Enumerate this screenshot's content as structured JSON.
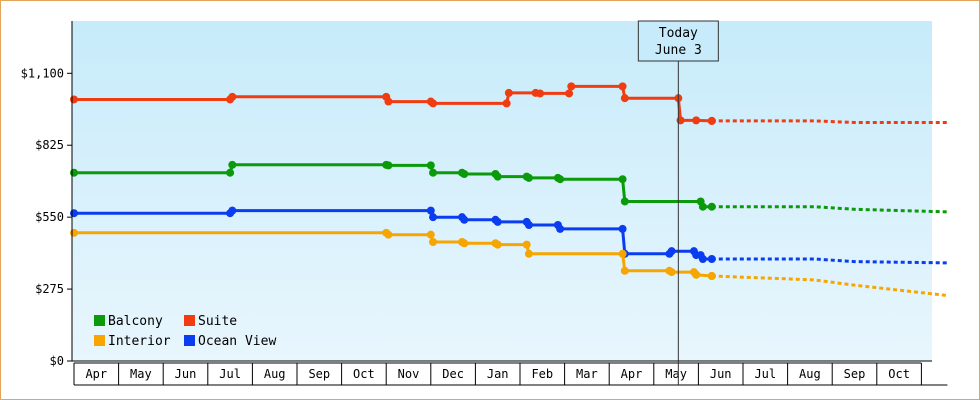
{
  "chart_data": {
    "type": "line",
    "title": "",
    "xlabel": "",
    "ylabel": "",
    "ylim": [
      0,
      1300
    ],
    "y_ticks": [
      {
        "value": 0,
        "label": "$0"
      },
      {
        "value": 275,
        "label": "$275"
      },
      {
        "value": 550,
        "label": "$550"
      },
      {
        "value": 825,
        "label": "$825"
      },
      {
        "value": 1100,
        "label": "$1,100"
      }
    ],
    "x_ticks": [
      "Apr",
      "May",
      "Jun",
      "Jul",
      "Aug",
      "Sep",
      "Oct",
      "Nov",
      "Dec",
      "Jan",
      "Feb",
      "Mar",
      "Apr",
      "May",
      "Jun",
      "Jul",
      "Aug",
      "Sep",
      "Oct"
    ],
    "today_marker": {
      "line1": "Today",
      "line2": "June 3",
      "month_index": 13.55
    },
    "legend": {
      "placement": "bottom-left",
      "items": [
        {
          "label": "Balcony",
          "color": "#0a9a0a"
        },
        {
          "label": "Suite",
          "color": "#f03c10"
        },
        {
          "label": "Interior",
          "color": "#f7a500"
        },
        {
          "label": "Ocean View",
          "color": "#0a3cf0"
        }
      ]
    },
    "series": [
      {
        "name": "Suite",
        "color": "#f03c10",
        "step": true,
        "points": [
          [
            0,
            1000
          ],
          [
            3.5,
            1000
          ],
          [
            3.55,
            1010
          ],
          [
            7,
            1010
          ],
          [
            7.05,
            992
          ],
          [
            8,
            992
          ],
          [
            8.05,
            985
          ],
          [
            9.7,
            985
          ],
          [
            9.75,
            1025
          ],
          [
            10.35,
            1025
          ],
          [
            10.45,
            1023
          ],
          [
            11.1,
            1023
          ],
          [
            11.15,
            1050
          ],
          [
            12.3,
            1050
          ],
          [
            12.35,
            1005
          ],
          [
            13.55,
            1005
          ],
          [
            13.6,
            920
          ],
          [
            13.95,
            920
          ],
          [
            14.3,
            918
          ]
        ],
        "forecast": [
          [
            14.3,
            918
          ],
          [
            16.6,
            918
          ],
          [
            17.5,
            912
          ],
          [
            19.6,
            912
          ]
        ]
      },
      {
        "name": "Balcony",
        "color": "#0a9a0a",
        "step": true,
        "points": [
          [
            0,
            720
          ],
          [
            3.5,
            720
          ],
          [
            3.55,
            750
          ],
          [
            7,
            750
          ],
          [
            7.05,
            748
          ],
          [
            8,
            748
          ],
          [
            8.05,
            720
          ],
          [
            8.7,
            720
          ],
          [
            8.75,
            715
          ],
          [
            9.45,
            715
          ],
          [
            9.5,
            705
          ],
          [
            10.15,
            705
          ],
          [
            10.2,
            700
          ],
          [
            10.85,
            700
          ],
          [
            10.9,
            695
          ],
          [
            12.3,
            695
          ],
          [
            12.35,
            610
          ],
          [
            14.05,
            610
          ],
          [
            14.1,
            590
          ],
          [
            14.3,
            590
          ]
        ],
        "forecast": [
          [
            14.3,
            590
          ],
          [
            16.6,
            590
          ],
          [
            17.5,
            580
          ],
          [
            19.6,
            570
          ]
        ]
      },
      {
        "name": "Ocean View",
        "color": "#0a3cf0",
        "step": true,
        "points": [
          [
            0,
            565
          ],
          [
            3.5,
            565
          ],
          [
            3.55,
            575
          ],
          [
            8,
            575
          ],
          [
            8.05,
            550
          ],
          [
            8.7,
            550
          ],
          [
            8.75,
            540
          ],
          [
            9.45,
            540
          ],
          [
            9.5,
            532
          ],
          [
            10.15,
            532
          ],
          [
            10.2,
            520
          ],
          [
            10.85,
            520
          ],
          [
            10.9,
            505
          ],
          [
            12.3,
            505
          ],
          [
            12.35,
            410
          ],
          [
            13.35,
            410
          ],
          [
            13.4,
            420
          ],
          [
            13.9,
            420
          ],
          [
            13.95,
            405
          ],
          [
            14.05,
            405
          ],
          [
            14.1,
            390
          ],
          [
            14.3,
            390
          ]
        ],
        "forecast": [
          [
            14.3,
            390
          ],
          [
            16.6,
            390
          ],
          [
            17.5,
            380
          ],
          [
            19.6,
            375
          ]
        ]
      },
      {
        "name": "Interior",
        "color": "#f7a500",
        "step": true,
        "points": [
          [
            0,
            490
          ],
          [
            7,
            490
          ],
          [
            7.05,
            483
          ],
          [
            8,
            483
          ],
          [
            8.05,
            455
          ],
          [
            8.7,
            455
          ],
          [
            8.75,
            450
          ],
          [
            9.45,
            450
          ],
          [
            9.5,
            445
          ],
          [
            10.15,
            445
          ],
          [
            10.2,
            410
          ],
          [
            12.3,
            410
          ],
          [
            12.35,
            345
          ],
          [
            13.35,
            345
          ],
          [
            13.4,
            340
          ],
          [
            13.9,
            340
          ],
          [
            13.95,
            330
          ],
          [
            14.3,
            325
          ]
        ],
        "forecast": [
          [
            14.3,
            325
          ],
          [
            16.6,
            310
          ],
          [
            17.5,
            290
          ],
          [
            19.6,
            250
          ]
        ]
      }
    ]
  }
}
